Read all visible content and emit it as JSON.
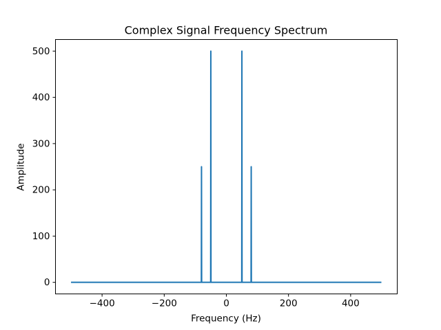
{
  "chart_data": {
    "type": "line",
    "title": "Complex Signal Frequency Spectrum",
    "xlabel": "Frequency (Hz)",
    "ylabel": "Amplitude",
    "xlim": [
      -550,
      550
    ],
    "ylim": [
      -25,
      525
    ],
    "xticks": [
      -400,
      -200,
      0,
      200,
      400
    ],
    "xtick_labels": [
      "−400",
      "−200",
      "0",
      "200",
      "400"
    ],
    "yticks": [
      0,
      100,
      200,
      300,
      400,
      500
    ],
    "ytick_labels": [
      "0",
      "100",
      "200",
      "300",
      "400",
      "500"
    ],
    "grid": false,
    "legend": "none",
    "series": [
      {
        "color": "#1f77b4",
        "x": [
          -500,
          -80.5,
          -80,
          -79.5,
          -50.5,
          -50,
          -49.5,
          49.5,
          50,
          50.5,
          79.5,
          80,
          80.5,
          499
        ],
        "y": [
          0,
          0,
          250,
          0,
          0,
          500,
          0,
          0,
          500,
          0,
          0,
          250,
          0,
          0
        ]
      }
    ]
  }
}
